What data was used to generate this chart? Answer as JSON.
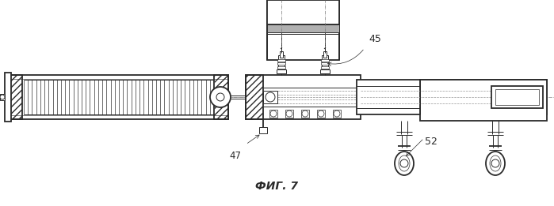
{
  "fig_label": "ФИГ. 7",
  "label_45": "45",
  "label_47": "47",
  "label_52": "52",
  "bg_color": "#ffffff",
  "line_color": "#2a2a2a",
  "figsize": [
    6.99,
    2.61
  ],
  "dpi": 100
}
